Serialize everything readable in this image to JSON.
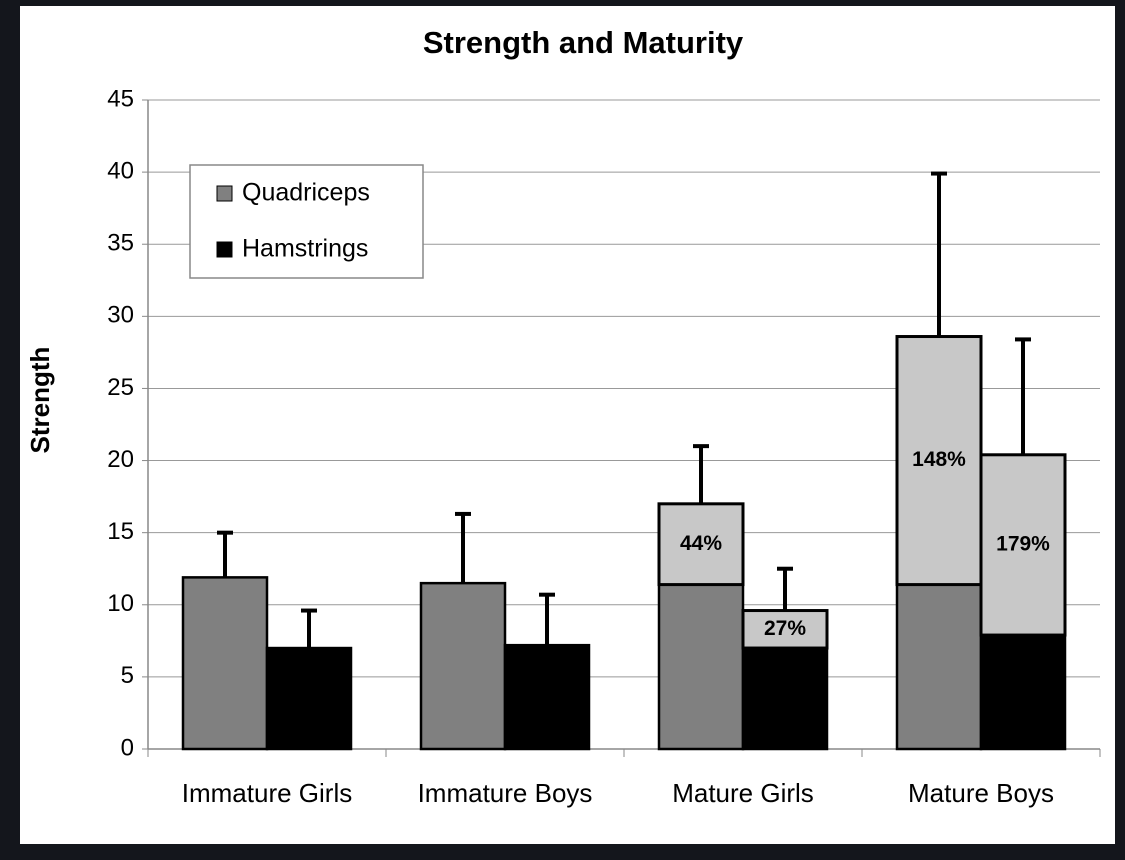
{
  "chart_data": {
    "type": "bar",
    "title": "Strength and Maturity",
    "y_label": "Strength",
    "categories": [
      "Immature Girls",
      "Immature Boys",
      "Mature Girls",
      "Mature Boys"
    ],
    "series": [
      {
        "name": "Quadriceps",
        "color": "#808080",
        "values": [
          11.9,
          11.5,
          11.4,
          11.4
        ],
        "increase": [
          null,
          null,
          5.6,
          17.2
        ],
        "increase_labels": [
          null,
          null,
          "44%",
          "148%"
        ],
        "errors": [
          3.1,
          4.8,
          4.0,
          11.3
        ]
      },
      {
        "name": "Hamstrings",
        "color": "#000000",
        "values": [
          7.0,
          7.2,
          7.0,
          7.9
        ],
        "increase": [
          null,
          null,
          2.6,
          12.5
        ],
        "increase_labels": [
          null,
          null,
          "27%",
          "179%"
        ],
        "errors": [
          2.6,
          3.5,
          2.9,
          8.0
        ]
      }
    ],
    "increase_color": "#c8c8c8",
    "ylim": [
      0,
      45
    ],
    "yticks": [
      0,
      5,
      10,
      15,
      20,
      25,
      30,
      35,
      40,
      45
    ],
    "grid": true,
    "legend": "upper left"
  }
}
